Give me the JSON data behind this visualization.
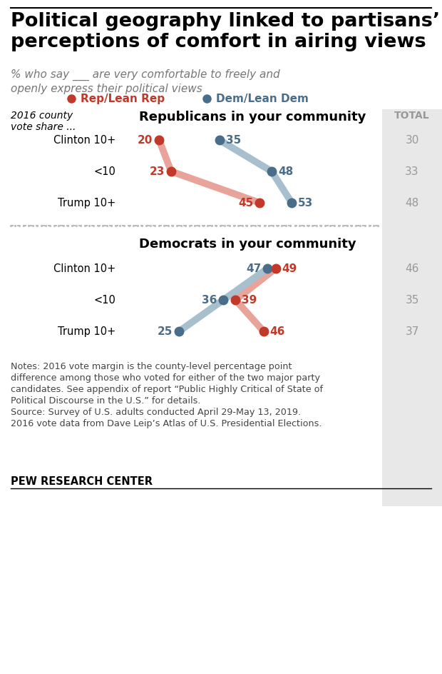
{
  "title": "Political geography linked to partisans’\nperceptions of comfort in airing views",
  "subtitle": "% who say ___ are very comfortable to freely and\nopenly express their political views",
  "legend_rep_label": "Rep/Lean Rep",
  "legend_dem_label": "Dem/Lean Dem",
  "rep_color": "#C0392B",
  "dem_color": "#4A6E8A",
  "rep_color_light": "#E8A39B",
  "dem_color_light": "#A8BFCE",
  "section1_title": "Republicans in your community",
  "section2_title": "Democrats in your community",
  "row_labels": [
    "Clinton 10+",
    "<10",
    "Trump 10+"
  ],
  "vote_share_label": "2016 county\nvote share ...",
  "total_label": "TOTAL",
  "section1_rep": [
    20,
    23,
    45
  ],
  "section1_dem": [
    35,
    48,
    53
  ],
  "section1_total": [
    30,
    33,
    48
  ],
  "section2_rep": [
    49,
    39,
    46
  ],
  "section2_dem": [
    47,
    36,
    25
  ],
  "section2_total": [
    46,
    35,
    37
  ],
  "notes_line1": "Notes: 2016 vote margin is the county-level percentage point",
  "notes_line2": "difference among those who voted for either of the two major party",
  "notes_line3": "candidates. See appendix of report “Public Highly Critical of State of",
  "notes_line4": "Political Discourse in the U.S.” for details.",
  "notes_line5": "Source: Survey of U.S. adults conducted April 29-May 13, 2019.",
  "notes_line6": "2016 vote data from Dave Leip’s Atlas of U.S. Presidential Elections.",
  "source_label": "PEW RESEARCH CENTER",
  "bg_color": "#FFFFFF",
  "total_bg_color": "#E8E8E8"
}
